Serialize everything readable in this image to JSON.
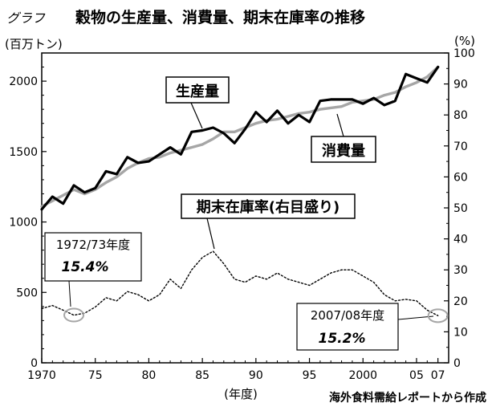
{
  "chart_data": {
    "type": "line",
    "title_prefix": "グラフ",
    "title": "穀物の生産量、消費量、期末在庫率の推移",
    "y_left_unit": "(百万トン)",
    "y_right_unit": "(%)",
    "x_unit": "(年度)",
    "source": "海外食料需給レポートから作成",
    "x_ticks": [
      {
        "value": 1970,
        "label": "1970"
      },
      {
        "value": 1975,
        "label": "75"
      },
      {
        "value": 1980,
        "label": "80"
      },
      {
        "value": 1985,
        "label": "85"
      },
      {
        "value": 1990,
        "label": "90"
      },
      {
        "value": 1995,
        "label": "95"
      },
      {
        "value": 2000,
        "label": "2000"
      },
      {
        "value": 2005,
        "label": "05"
      },
      {
        "value": 2007,
        "label": "07"
      }
    ],
    "xlim": [
      1970,
      2008
    ],
    "y_left_ticks": [
      0,
      500,
      1000,
      1500,
      2000
    ],
    "ylim_left": [
      0,
      2200
    ],
    "y_right_ticks": [
      0,
      10,
      20,
      30,
      40,
      50,
      60,
      70,
      80,
      90,
      100
    ],
    "ylim_right": [
      0,
      100
    ],
    "series": [
      {
        "name": "生産量",
        "axis": "left",
        "style": "solid-thick",
        "color": "#000000",
        "x": [
          1970,
          1971,
          1972,
          1973,
          1974,
          1975,
          1976,
          1977,
          1978,
          1979,
          1980,
          1981,
          1982,
          1983,
          1984,
          1985,
          1986,
          1987,
          1988,
          1989,
          1990,
          1991,
          1992,
          1993,
          1994,
          1995,
          1996,
          1997,
          1998,
          1999,
          2000,
          2001,
          2002,
          2003,
          2004,
          2005,
          2006,
          2007
        ],
        "values": [
          1090,
          1180,
          1130,
          1260,
          1210,
          1240,
          1360,
          1340,
          1460,
          1420,
          1430,
          1480,
          1530,
          1480,
          1640,
          1650,
          1670,
          1630,
          1560,
          1660,
          1780,
          1710,
          1790,
          1700,
          1760,
          1710,
          1860,
          1870,
          1870,
          1870,
          1840,
          1880,
          1830,
          1860,
          2050,
          2020,
          1990,
          2100
        ]
      },
      {
        "name": "消費量",
        "axis": "left",
        "style": "solid-gray",
        "color": "#a6a6a6",
        "x": [
          1970,
          1971,
          1972,
          1973,
          1974,
          1975,
          1976,
          1977,
          1978,
          1979,
          1980,
          1981,
          1982,
          1983,
          1984,
          1985,
          1986,
          1987,
          1988,
          1989,
          1990,
          1991,
          1992,
          1993,
          1994,
          1995,
          1996,
          1997,
          1998,
          1999,
          2000,
          2001,
          2002,
          2003,
          2004,
          2005,
          2006,
          2007
        ],
        "values": [
          1110,
          1150,
          1190,
          1230,
          1200,
          1230,
          1280,
          1320,
          1380,
          1420,
          1450,
          1460,
          1490,
          1510,
          1530,
          1550,
          1590,
          1640,
          1640,
          1670,
          1700,
          1720,
          1730,
          1750,
          1770,
          1780,
          1800,
          1810,
          1820,
          1850,
          1860,
          1870,
          1900,
          1920,
          1960,
          1990,
          2030,
          2100
        ]
      },
      {
        "name": "期末在庫率(右目盛り)",
        "axis": "right",
        "style": "dotted",
        "color": "#000000",
        "x": [
          1970,
          1971,
          1972,
          1973,
          1974,
          1975,
          1976,
          1977,
          1978,
          1979,
          1980,
          1981,
          1982,
          1983,
          1984,
          1985,
          1986,
          1987,
          1988,
          1989,
          1990,
          1991,
          1992,
          1993,
          1994,
          1995,
          1996,
          1997,
          1998,
          1999,
          2000,
          2001,
          2002,
          2003,
          2004,
          2005,
          2006,
          2007
        ],
        "values": [
          17.5,
          18.5,
          17,
          15.4,
          16,
          18,
          21,
          20,
          23,
          22,
          20,
          22,
          27,
          24,
          30,
          34,
          36,
          32,
          27,
          26,
          28,
          27,
          29,
          27,
          26,
          25,
          27,
          29,
          30,
          30,
          28,
          26,
          22,
          20,
          20.5,
          20,
          17,
          15.2
        ]
      }
    ],
    "callouts": [
      {
        "id": "production",
        "label": "生産量"
      },
      {
        "id": "consumption",
        "label": "消費量"
      },
      {
        "id": "stock",
        "label": "期末在庫率(右目盛り)"
      }
    ],
    "annotations": [
      {
        "id": "a1973",
        "year_label": "1972/73年度",
        "value_label": "15.4%",
        "x": 1973,
        "y_right": 15.4
      },
      {
        "id": "a2007",
        "year_label": "2007/08年度",
        "value_label": "15.2%",
        "x": 2007,
        "y_right": 15.2
      }
    ]
  }
}
